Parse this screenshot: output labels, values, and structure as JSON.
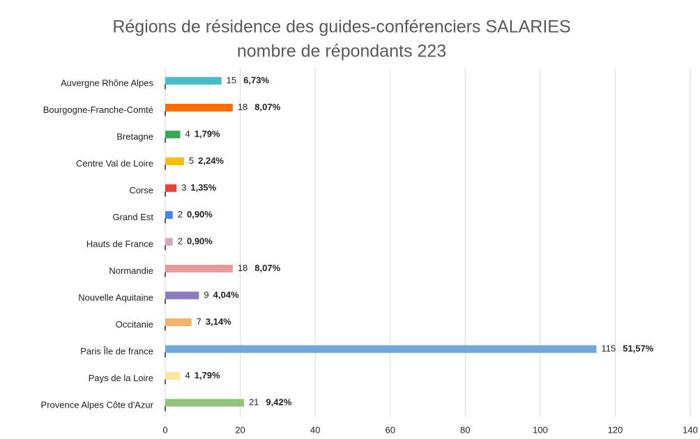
{
  "chart_data": {
    "type": "bar",
    "orientation": "horizontal",
    "title": "Régions de résidence des guides-conférenciers SALARIES",
    "subtitle": "nombre de répondants 223",
    "categories": [
      "Auvergne Rhône Alpes",
      "Bourgogne-Franche-Comté",
      "Bretagne",
      "Centre Val de Loire",
      "Corse",
      "Grand Est",
      "Hauts de France",
      "Normandie",
      "Nouvelle Aquitaine",
      "Occitanie",
      "Paris Île de france",
      "Pays de la Loire",
      "Provence Alpes Côte d'Azur"
    ],
    "values": [
      15,
      18,
      4,
      5,
      3,
      2,
      2,
      18,
      9,
      7,
      115,
      4,
      21
    ],
    "percent_labels": [
      "6,73%",
      "8,07%",
      "1,79%",
      "2,24%",
      "1,35%",
      "0,90%",
      "0,90%",
      "8,07%",
      "4,04%",
      "3,14%",
      "51,57%",
      "1,79%",
      "9,42%"
    ],
    "colors": [
      "#46bdc6",
      "#ff6d01",
      "#34a853",
      "#fbbc04",
      "#ea4335",
      "#4285f4",
      "#d5a6bd",
      "#ea9999",
      "#8e7cc3",
      "#f6b26b",
      "#6fa8dc",
      "#ffe599",
      "#93c47d"
    ],
    "xlim": [
      0,
      140
    ],
    "xticks": [
      0,
      20,
      40,
      60,
      80,
      100,
      120,
      140
    ],
    "grid": true
  }
}
